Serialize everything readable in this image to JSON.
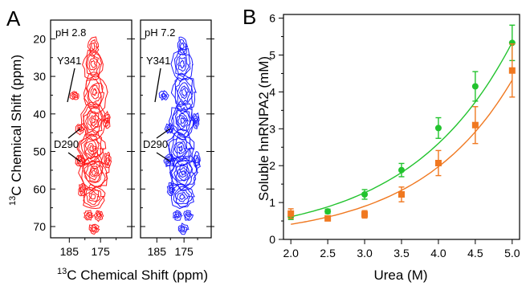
{
  "panel_a": {
    "panel_letter": "A",
    "ylabel_sup": "13",
    "ylabel_main": "C Chemical Shift (ppm)",
    "xlabel_sup": "13",
    "xlabel_main": "C Chemical Shift (ppm)",
    "left_plot": {
      "condition": "pH 2.8",
      "color": "#ff1a1a",
      "labels": [
        "Y341",
        "D290"
      ]
    },
    "right_plot": {
      "condition": "pH 7.2",
      "color": "#1a1aff",
      "labels": [
        "Y341",
        "D290"
      ]
    }
  },
  "panel_b": {
    "panel_letter": "B"
  },
  "chart_data": [
    {
      "type": "heatmap",
      "title": "pH 2.8",
      "xlabel": "13C Chemical Shift (ppm)",
      "ylabel": "13C Chemical Shift (ppm)",
      "x_reversed": true,
      "y_reversed": true,
      "xlim": [
        191,
        165
      ],
      "ylim": [
        15,
        73
      ],
      "xticks": [
        185,
        175
      ],
      "yticks": [
        20,
        30,
        40,
        50,
        60,
        70
      ],
      "annotations": [
        "Y341",
        "D290"
      ],
      "color": "#ff1a1a"
    },
    {
      "type": "heatmap",
      "title": "pH 7.2",
      "xlabel": "13C Chemical Shift (ppm)",
      "ylabel": "13C Chemical Shift (ppm)",
      "x_reversed": true,
      "y_reversed": true,
      "xlim": [
        191,
        165
      ],
      "ylim": [
        15,
        73
      ],
      "xticks": [
        185,
        175
      ],
      "yticks": [
        20,
        30,
        40,
        50,
        60,
        70
      ],
      "annotations": [
        "Y341",
        "D290"
      ],
      "color": "#1a1aff"
    },
    {
      "type": "scatter",
      "xlabel": "Urea (M)",
      "ylabel": "Soluble hnRNPA2 (mM)",
      "xlim": [
        1.9,
        5.1
      ],
      "ylim": [
        0,
        6.1
      ],
      "xticks": [
        2.0,
        2.5,
        3.0,
        3.5,
        4.0,
        4.5,
        5.0
      ],
      "yticks": [
        0,
        1,
        2,
        3,
        4,
        5,
        6
      ],
      "grid": false,
      "series": [
        {
          "color": "#22c32e",
          "marker": "circle",
          "x": [
            2.0,
            2.5,
            3.0,
            3.5,
            4.0,
            4.5,
            5.0
          ],
          "y": [
            0.62,
            0.76,
            1.22,
            1.88,
            3.02,
            4.15,
            5.33
          ],
          "err": [
            0.08,
            0.06,
            0.13,
            0.18,
            0.28,
            0.4,
            0.48
          ],
          "fit": {
            "a": 0.146,
            "b": 0.72
          }
        },
        {
          "color": "#f07820",
          "marker": "square",
          "x": [
            2.0,
            2.5,
            3.0,
            3.5,
            4.0,
            4.5,
            5.0
          ],
          "y": [
            0.7,
            0.57,
            0.68,
            1.22,
            2.07,
            3.1,
            4.58
          ],
          "err": [
            0.13,
            0.05,
            0.1,
            0.2,
            0.34,
            0.5,
            0.72
          ],
          "fit": {
            "a": 0.0853,
            "b": 0.785
          }
        }
      ]
    }
  ]
}
